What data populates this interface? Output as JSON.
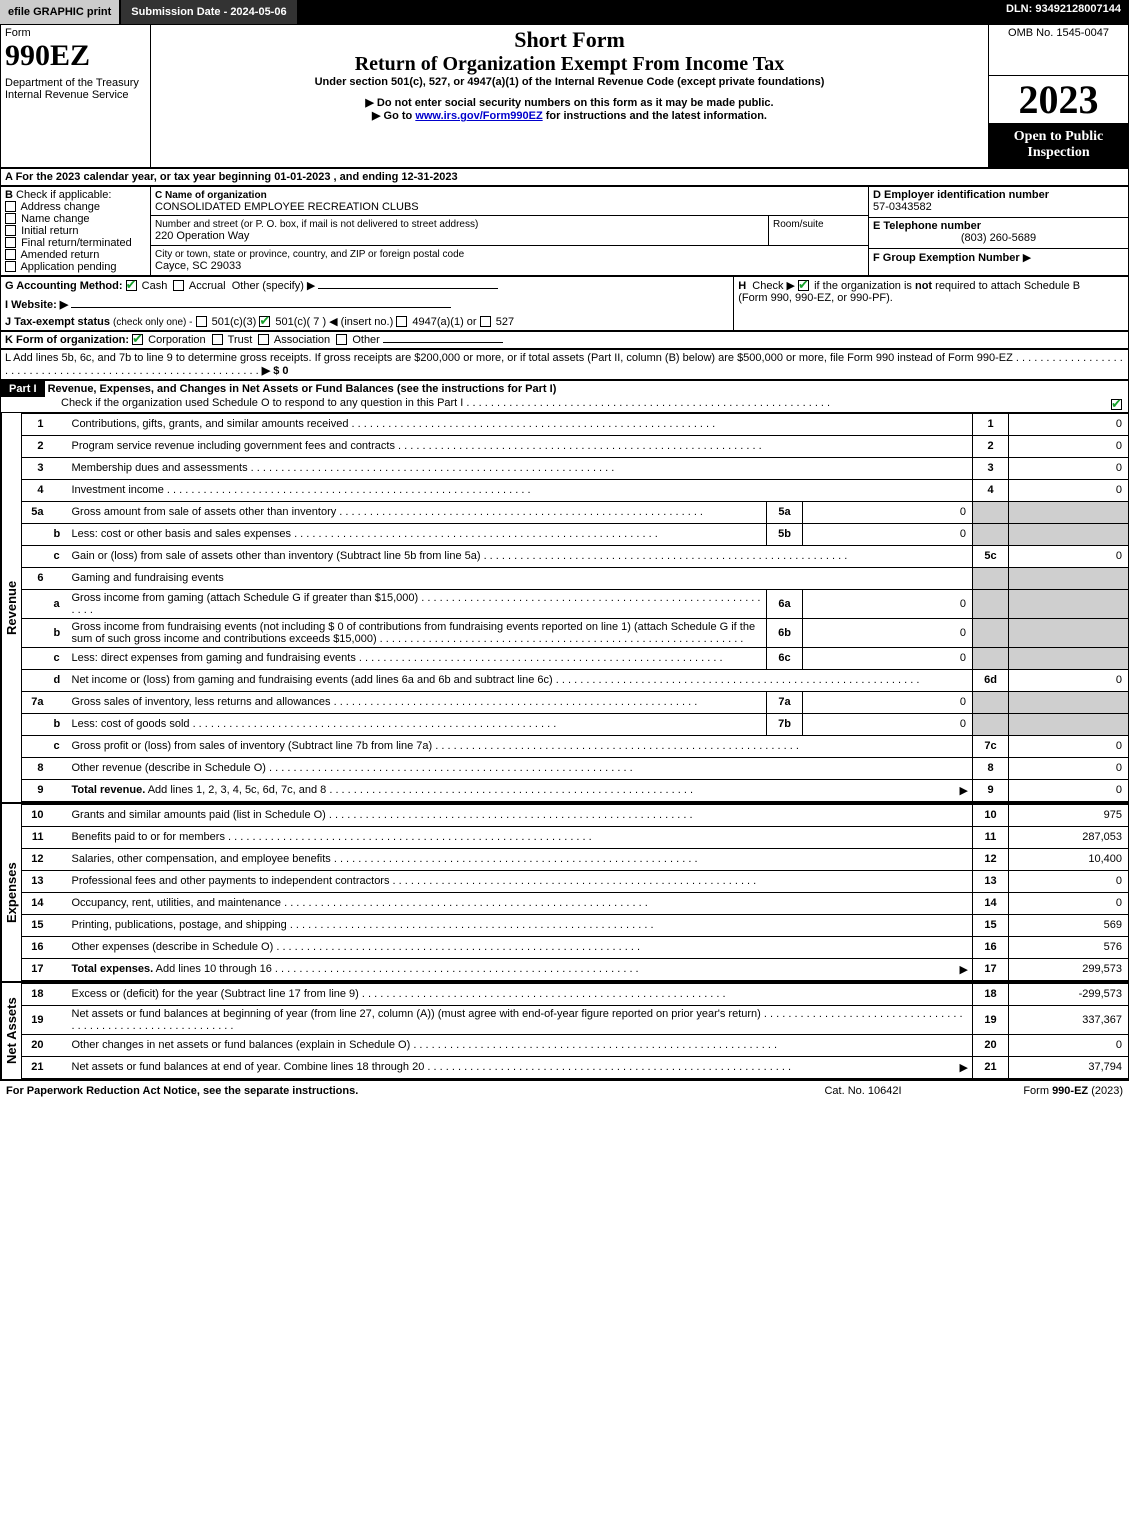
{
  "topbar": {
    "efile": "efile GRAPHIC print",
    "submission": "Submission Date - 2024-05-06",
    "dln": "DLN: 93492128007144"
  },
  "header": {
    "form_word": "Form",
    "form_num": "990EZ",
    "dept": "Department of the Treasury\nInternal Revenue Service",
    "shortform": "Short Form",
    "title": "Return of Organization Exempt From Income Tax",
    "subtitle": "Under section 501(c), 527, or 4947(a)(1) of the Internal Revenue Code (except private foundations)",
    "note1": "▶ Do not enter social security numbers on this form as it may be made public.",
    "note2_pre": "▶ Go to ",
    "note2_link": "www.irs.gov/Form990EZ",
    "note2_post": " for instructions and the latest information.",
    "omb": "OMB No. 1545-0047",
    "year": "2023",
    "open": "Open to Public Inspection"
  },
  "lineA": "A  For the 2023 calendar year, or tax year beginning 01-01-2023 , and ending 12-31-2023",
  "boxB": {
    "label": "B",
    "text": "Check if applicable:",
    "opts": [
      "Address change",
      "Name change",
      "Initial return",
      "Final return/terminated",
      "Amended return",
      "Application pending"
    ]
  },
  "boxC": {
    "label_name": "C Name of organization",
    "name": "CONSOLIDATED EMPLOYEE RECREATION CLUBS",
    "label_addr": "Number and street (or P. O. box, if mail is not delivered to street address)",
    "addr": "220 Operation Way",
    "room_label": "Room/suite",
    "label_city": "City or town, state or province, country, and ZIP or foreign postal code",
    "city": "Cayce, SC  29033"
  },
  "boxD": {
    "label": "D Employer identification number",
    "val": "57-0343582"
  },
  "boxE": {
    "label": "E Telephone number",
    "val": "(803) 260-5689"
  },
  "boxF": {
    "label": "F Group Exemption Number",
    "arrow": "▶"
  },
  "lineG": {
    "label": "G Accounting Method:",
    "cash": "Cash",
    "accrual": "Accrual",
    "other": "Other (specify) ▶"
  },
  "lineH": {
    "label": "H",
    "text1": "Check ▶",
    "text2": "if the organization is ",
    "not": "not",
    "text3": " required to attach Schedule B",
    "text4": "(Form 990, 990-EZ, or 990-PF)."
  },
  "lineI": "I Website: ▶",
  "lineJ": {
    "pre": "J Tax-exempt status ",
    "small": "(check only one) ‐",
    "o1": "501(c)(3)",
    "o2": "501(c)( 7 ) ◀ (insert no.)",
    "o3": "4947(a)(1) or",
    "o4": "527"
  },
  "lineK": {
    "pre": "K Form of organization:",
    "o1": "Corporation",
    "o2": "Trust",
    "o3": "Association",
    "o4": "Other"
  },
  "lineL": {
    "text": "L Add lines 5b, 6c, and 7b to line 9 to determine gross receipts. If gross receipts are $200,000 or more, or if total assets (Part II, column (B) below) are $500,000 or more, file Form 990 instead of Form 990-EZ",
    "arrow": "▶ $ 0"
  },
  "part1": {
    "tab": "Part I",
    "title": "Revenue, Expenses, and Changes in Net Assets or Fund Balances (see the instructions for Part I)",
    "checknote": "Check if the organization used Schedule O to respond to any question in this Part I"
  },
  "sections": {
    "rev": "Revenue",
    "exp": "Expenses",
    "net": "Net Assets"
  },
  "rows": [
    {
      "n": "1",
      "sub": "",
      "d": "Contributions, gifts, grants, and similar amounts received",
      "box": "1",
      "v": "0"
    },
    {
      "n": "2",
      "sub": "",
      "d": "Program service revenue including government fees and contracts",
      "box": "2",
      "v": "0"
    },
    {
      "n": "3",
      "sub": "",
      "d": "Membership dues and assessments",
      "box": "3",
      "v": "0"
    },
    {
      "n": "4",
      "sub": "",
      "d": "Investment income",
      "box": "4",
      "v": "0"
    },
    {
      "n": "5a",
      "sub": "",
      "d": "Gross amount from sale of assets other than inventory",
      "mb": "5a",
      "mv": "0"
    },
    {
      "n": "",
      "sub": "b",
      "d": "Less: cost or other basis and sales expenses",
      "mb": "5b",
      "mv": "0"
    },
    {
      "n": "",
      "sub": "c",
      "d": "Gain or (loss) from sale of assets other than inventory (Subtract line 5b from line 5a)",
      "box": "5c",
      "v": "0"
    },
    {
      "n": "6",
      "sub": "",
      "d": "Gaming and fundraising events"
    },
    {
      "n": "",
      "sub": "a",
      "d": "Gross income from gaming (attach Schedule G if greater than $15,000)",
      "mb": "6a",
      "mv": "0"
    },
    {
      "n": "",
      "sub": "b",
      "d": "Gross income from fundraising events (not including $  0            of contributions from fundraising events reported on line 1) (attach Schedule G if the sum of such gross income and contributions exceeds $15,000)",
      "mb": "6b",
      "mv": "0"
    },
    {
      "n": "",
      "sub": "c",
      "d": "Less: direct expenses from gaming and fundraising events",
      "mb": "6c",
      "mv": "0"
    },
    {
      "n": "",
      "sub": "d",
      "d": "Net income or (loss) from gaming and fundraising events (add lines 6a and 6b and subtract line 6c)",
      "box": "6d",
      "v": "0"
    },
    {
      "n": "7a",
      "sub": "",
      "d": "Gross sales of inventory, less returns and allowances",
      "mb": "7a",
      "mv": "0"
    },
    {
      "n": "",
      "sub": "b",
      "d": "Less: cost of goods sold",
      "mb": "7b",
      "mv": "0"
    },
    {
      "n": "",
      "sub": "c",
      "d": "Gross profit or (loss) from sales of inventory (Subtract line 7b from line 7a)",
      "box": "7c",
      "v": "0"
    },
    {
      "n": "8",
      "sub": "",
      "d": "Other revenue (describe in Schedule O)",
      "box": "8",
      "v": "0"
    },
    {
      "n": "9",
      "sub": "",
      "d": "Total revenue. Add lines 1, 2, 3, 4, 5c, 6d, 7c, and 8",
      "box": "9",
      "v": "0",
      "bold": true,
      "arrow": true
    }
  ],
  "exp_rows": [
    {
      "n": "10",
      "d": "Grants and similar amounts paid (list in Schedule O)",
      "box": "10",
      "v": "975"
    },
    {
      "n": "11",
      "d": "Benefits paid to or for members",
      "box": "11",
      "v": "287,053"
    },
    {
      "n": "12",
      "d": "Salaries, other compensation, and employee benefits",
      "box": "12",
      "v": "10,400"
    },
    {
      "n": "13",
      "d": "Professional fees and other payments to independent contractors",
      "box": "13",
      "v": "0"
    },
    {
      "n": "14",
      "d": "Occupancy, rent, utilities, and maintenance",
      "box": "14",
      "v": "0"
    },
    {
      "n": "15",
      "d": "Printing, publications, postage, and shipping",
      "box": "15",
      "v": "569"
    },
    {
      "n": "16",
      "d": "Other expenses (describe in Schedule O)",
      "box": "16",
      "v": "576"
    },
    {
      "n": "17",
      "d": "Total expenses. Add lines 10 through 16",
      "box": "17",
      "v": "299,573",
      "bold": true,
      "arrow": true
    }
  ],
  "net_rows": [
    {
      "n": "18",
      "d": "Excess or (deficit) for the year (Subtract line 17 from line 9)",
      "box": "18",
      "v": "-299,573"
    },
    {
      "n": "19",
      "d": "Net assets or fund balances at beginning of year (from line 27, column (A)) (must agree with end-of-year figure reported on prior year's return)",
      "box": "19",
      "v": "337,367"
    },
    {
      "n": "20",
      "d": "Other changes in net assets or fund balances (explain in Schedule O)",
      "box": "20",
      "v": "0"
    },
    {
      "n": "21",
      "d": "Net assets or fund balances at end of year. Combine lines 18 through 20",
      "box": "21",
      "v": "37,794",
      "arrow": true
    }
  ],
  "footer": {
    "left": "For Paperwork Reduction Act Notice, see the separate instructions.",
    "mid": "Cat. No. 10642I",
    "right_pre": "Form ",
    "right_bold": "990-EZ",
    "right_post": " (2023)"
  }
}
